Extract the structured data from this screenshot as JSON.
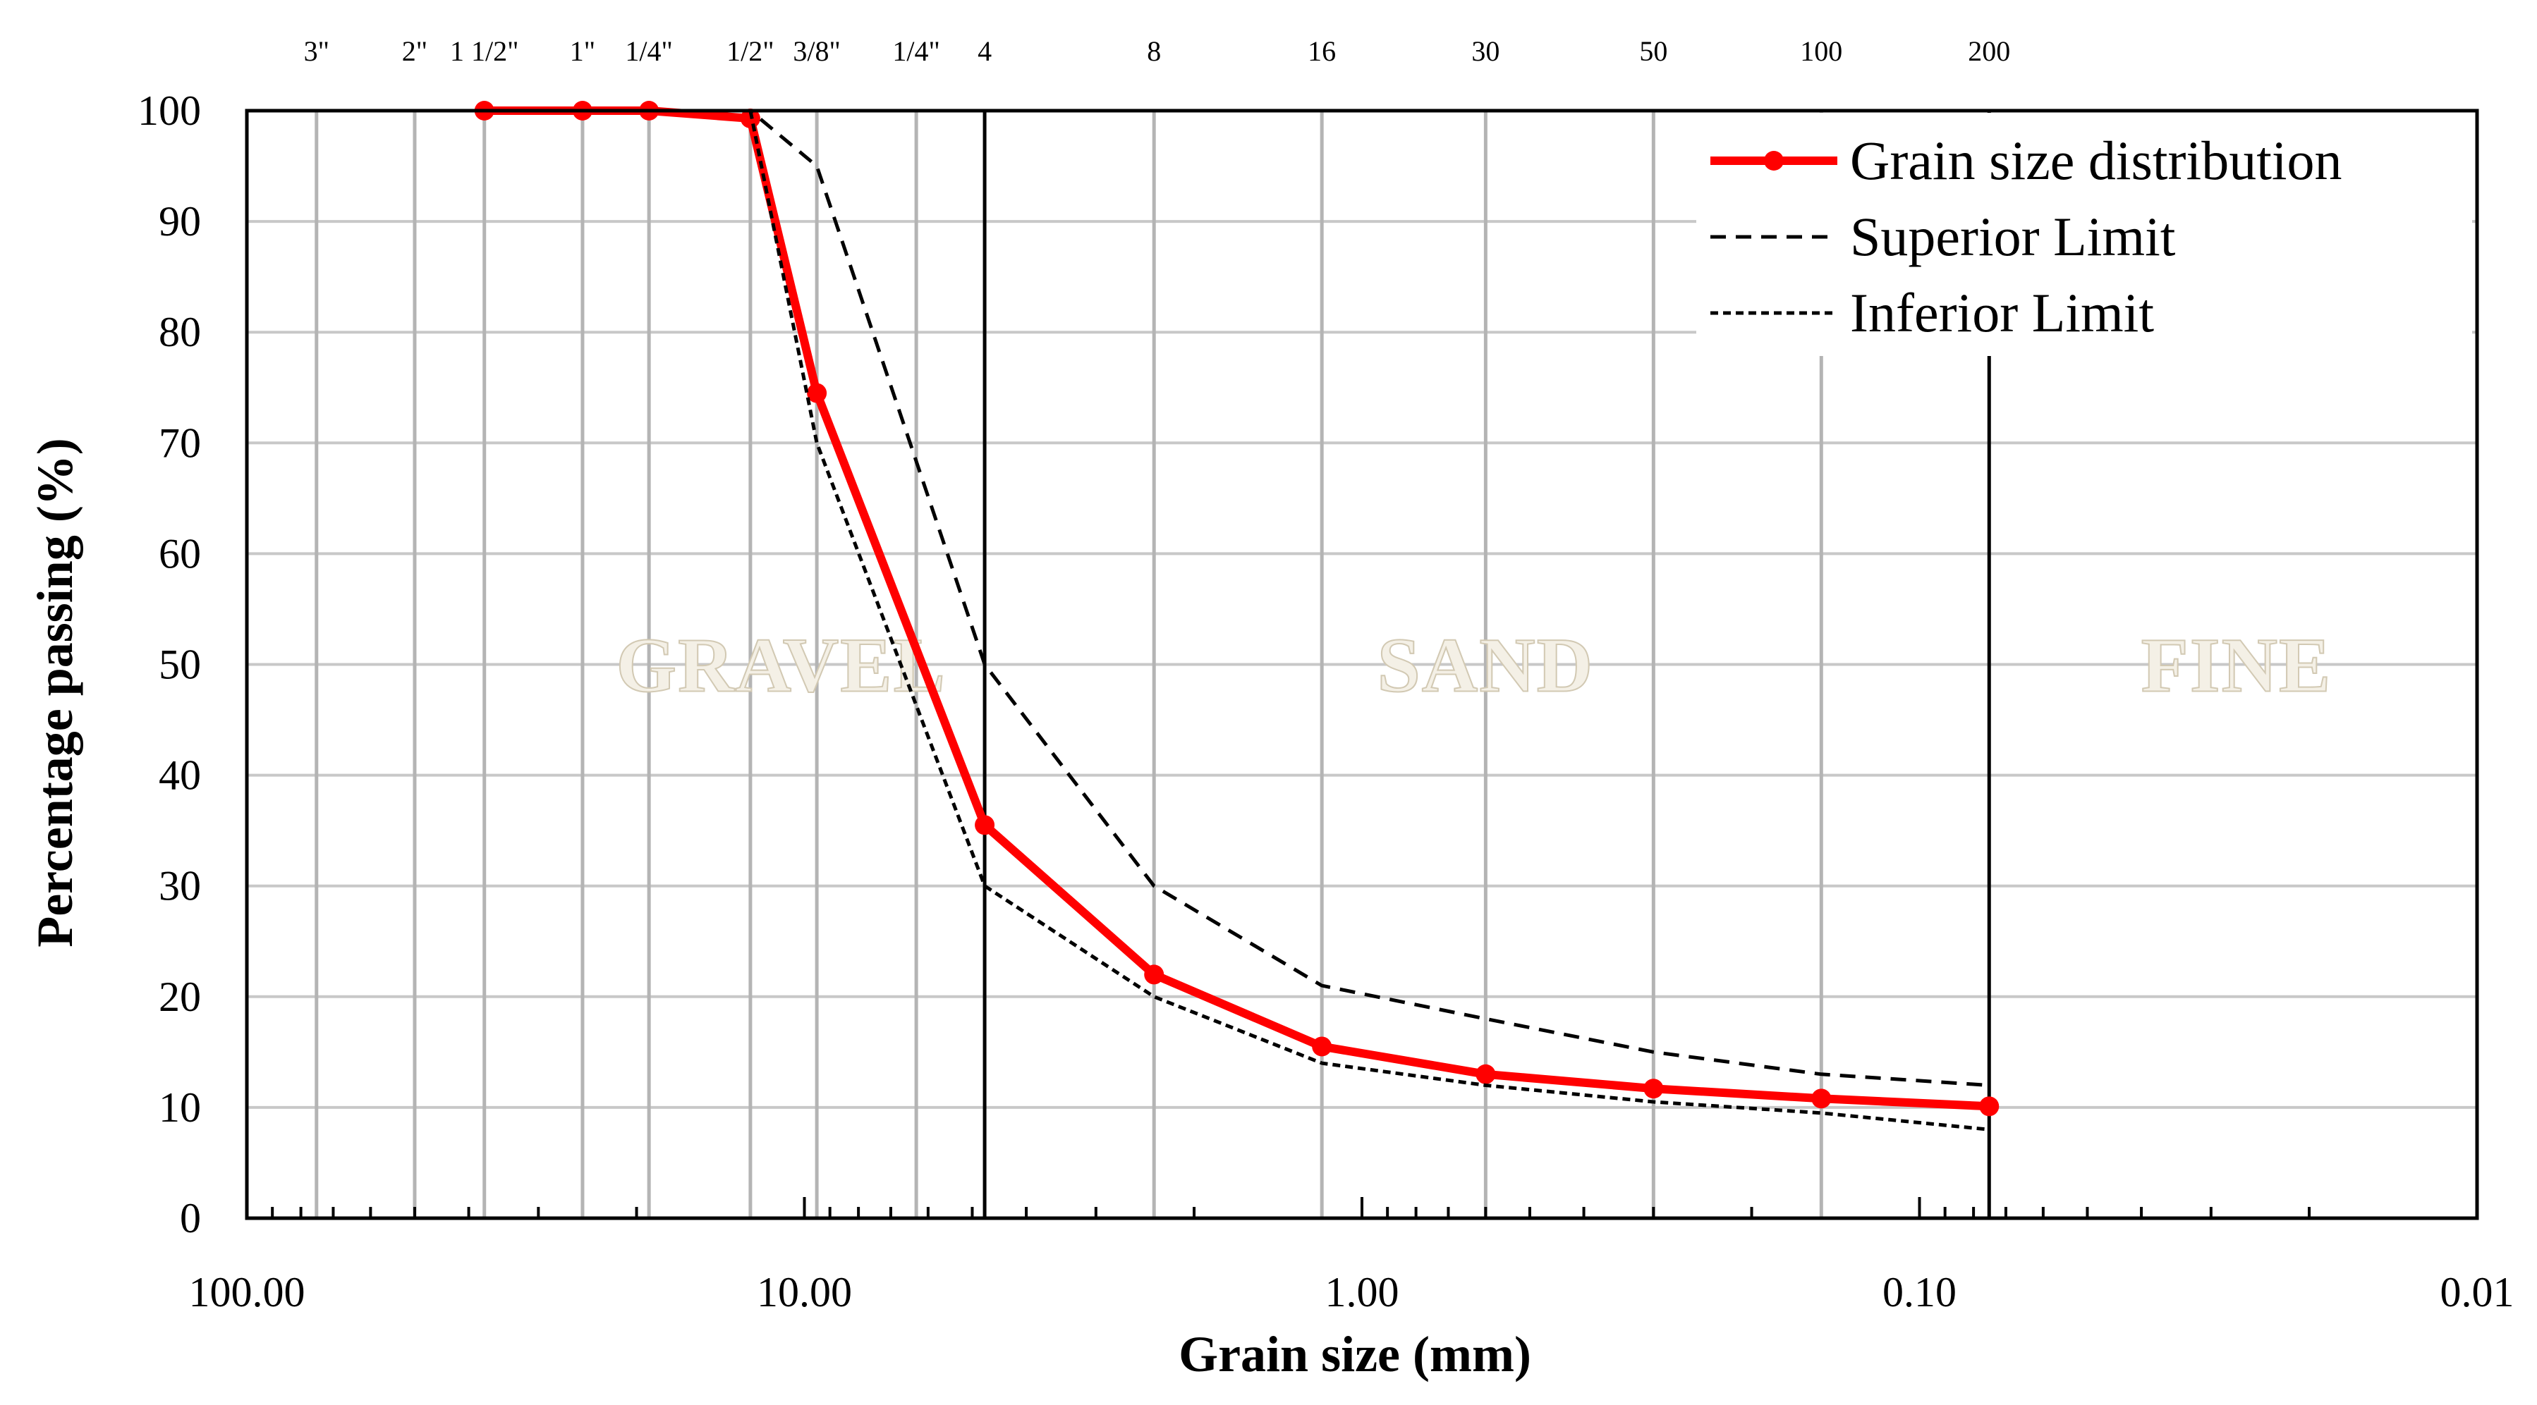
{
  "chart_data": {
    "type": "line",
    "xscale": "log",
    "xreversed": true,
    "xlim": [
      100,
      0.01
    ],
    "ylim": [
      0,
      100
    ],
    "xlabel": "Grain size (mm)",
    "ylabel": "Percentage passing (%)",
    "y_ticks": [
      0,
      10,
      20,
      30,
      40,
      50,
      60,
      70,
      80,
      90,
      100
    ],
    "x_ticks": [
      {
        "value": 100,
        "label": "100.00"
      },
      {
        "value": 10,
        "label": "10.00"
      },
      {
        "value": 1,
        "label": "1.00"
      },
      {
        "value": 0.1,
        "label": "0.10"
      },
      {
        "value": 0.01,
        "label": "0.01"
      }
    ],
    "sieves": [
      {
        "label": "3\"",
        "size": 75
      },
      {
        "label": "2\"",
        "size": 50
      },
      {
        "label": "1 1/2\"",
        "size": 37.5
      },
      {
        "label": "1\"",
        "size": 25
      },
      {
        "label": "1/4\"",
        "size": 19
      },
      {
        "label": "1/2\"",
        "size": 12.5
      },
      {
        "label": "3/8\"",
        "size": 9.5
      },
      {
        "label": "1/4\"",
        "size": 6.3
      },
      {
        "label": "4",
        "size": 4.75
      },
      {
        "label": "8",
        "size": 2.36
      },
      {
        "label": "16",
        "size": 1.18
      },
      {
        "label": "30",
        "size": 0.6
      },
      {
        "label": "50",
        "size": 0.3
      },
      {
        "label": "100",
        "size": 0.15
      },
      {
        "label": "200",
        "size": 0.075
      }
    ],
    "zones": [
      {
        "label": "GRAVEL",
        "x": 11
      },
      {
        "label": "SAND",
        "x": 0.6
      },
      {
        "label": "FINE",
        "x": 0.027
      }
    ],
    "series": [
      {
        "name": "Grain size distribution",
        "color": "#ff0000",
        "style": "solid-markers",
        "x": [
          37.5,
          25,
          19,
          12.5,
          9.5,
          4.75,
          2.36,
          1.18,
          0.6,
          0.3,
          0.15,
          0.075
        ],
        "y": [
          100,
          100,
          100,
          99.3,
          74.5,
          35.5,
          22,
          15.5,
          13,
          11.7,
          10.8,
          10.1
        ]
      },
      {
        "name": "Superior Limit",
        "color": "#000000",
        "style": "dashed",
        "x": [
          37.5,
          12.5,
          9.5,
          4.75,
          2.36,
          1.18,
          0.6,
          0.3,
          0.15,
          0.075
        ],
        "y": [
          100,
          100,
          95,
          50,
          30,
          21,
          18,
          15,
          13,
          12
        ]
      },
      {
        "name": "Inferior Limit",
        "color": "#000000",
        "style": "dotted",
        "x": [
          37.5,
          12.5,
          9.5,
          4.75,
          2.36,
          1.18,
          0.6,
          0.3,
          0.15,
          0.075
        ],
        "y": [
          100,
          100,
          70,
          30,
          20,
          14,
          12,
          10.5,
          9.5,
          8
        ]
      }
    ],
    "legend_position": "top-right"
  }
}
